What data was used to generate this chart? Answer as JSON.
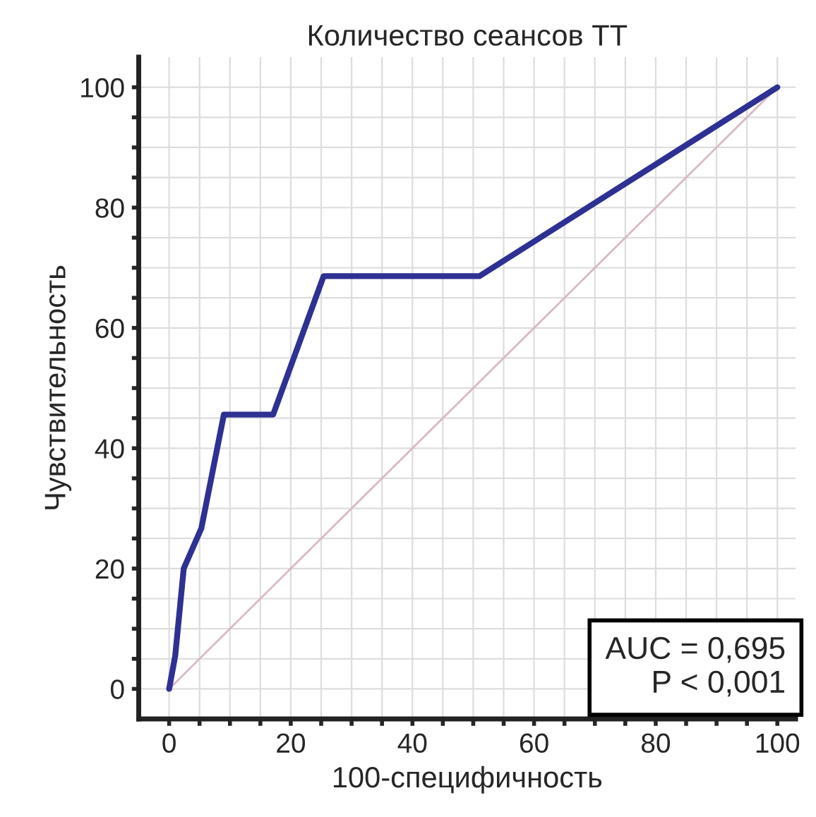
{
  "chart_data": {
    "type": "line",
    "title": "Количество сеансов ТТ",
    "xlabel": "100-специфичность",
    "ylabel": "Чувствительность",
    "series": [
      {
        "x": [
          0,
          1,
          2.4,
          5.3,
          9,
          17.1,
          25.4,
          51,
          100
        ],
        "values": [
          0,
          5.5,
          20,
          26.7,
          45.6,
          45.6,
          68.6,
          68.6,
          100
        ],
        "color": "#2e3192"
      },
      {
        "x": [
          0,
          100
        ],
        "values": [
          0,
          100
        ],
        "color": "#d8b8c8"
      }
    ],
    "xlim": [
      -5,
      103
    ],
    "ylim": [
      -5,
      105
    ],
    "xticks": [
      0,
      {
        "value": 5,
        "label": null
      },
      {
        "value": 10,
        "label": null
      },
      {
        "value": 15,
        "label": null
      },
      20,
      {
        "value": 25,
        "label": null
      },
      {
        "value": 30,
        "label": null
      },
      {
        "value": 35,
        "label": null
      },
      40,
      {
        "value": 45,
        "label": null
      },
      {
        "value": 50,
        "label": null
      },
      {
        "value": 55,
        "label": null
      },
      60,
      {
        "value": 65,
        "label": null
      },
      {
        "value": 70,
        "label": null
      },
      {
        "value": 75,
        "label": null
      },
      80,
      {
        "value": 85,
        "label": null
      },
      {
        "value": 90,
        "label": null
      },
      {
        "value": 95,
        "label": null
      },
      100
    ],
    "yticks": [
      0,
      {
        "value": 5,
        "label": null
      },
      {
        "value": 10,
        "label": null
      },
      {
        "value": 15,
        "label": null
      },
      20,
      {
        "value": 25,
        "label": null
      },
      {
        "value": 30,
        "label": null
      },
      {
        "value": 35,
        "label": null
      },
      40,
      {
        "value": 45,
        "label": null
      },
      {
        "value": 50,
        "label": null
      },
      {
        "value": 55,
        "label": null
      },
      60,
      {
        "value": 65,
        "label": null
      },
      {
        "value": 70,
        "label": null
      },
      {
        "value": 75,
        "label": null
      },
      80,
      {
        "value": 85,
        "label": null
      },
      {
        "value": 90,
        "label": null
      },
      {
        "value": 95,
        "label": null
      },
      100
    ],
    "grid": true,
    "annotations": [
      "AUC = 0,695\nP < 0,001"
    ]
  }
}
